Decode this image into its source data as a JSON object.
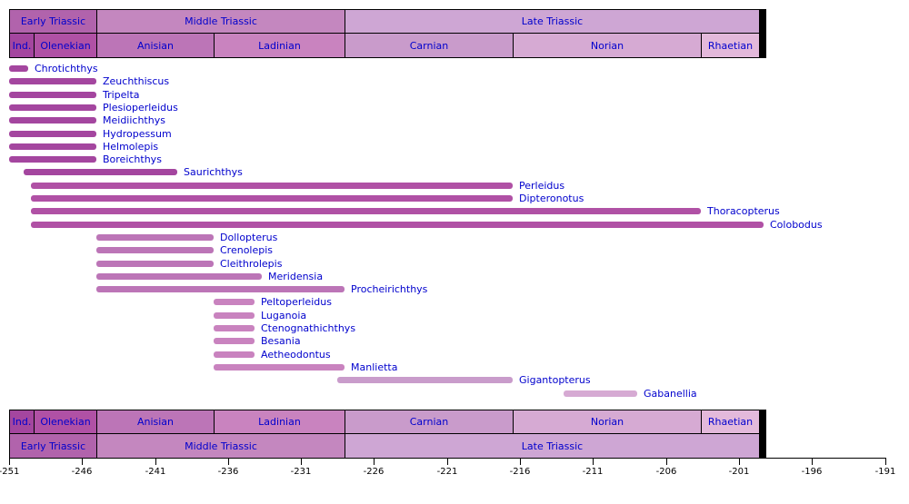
{
  "chart_data": {
    "type": "range-timeline",
    "title": "",
    "time_unit": "Ma",
    "label_color": "#0000CD",
    "tick_color": "#000000",
    "axis": {
      "min": -251,
      "max": -191,
      "tick_labels": [
        "-251",
        "-246",
        "-241",
        "-236",
        "-231",
        "-226",
        "-221",
        "-216",
        "-211",
        "-206",
        "-201",
        "-196",
        "-191"
      ]
    },
    "epoch_rows": [
      {
        "label": "Early Triassic",
        "start": 251,
        "end": 245,
        "color": "#B163AC"
      },
      {
        "label": "Middle Triassic",
        "start": 245,
        "end": 228,
        "color": "#C487BF"
      },
      {
        "label": "Late Triassic",
        "start": 228,
        "end": 199.6,
        "color": "#CEA6D4"
      }
    ],
    "stage_rows": [
      {
        "label": "Ind.",
        "start": 251,
        "end": 249.3,
        "color": "#A4469F"
      },
      {
        "label": "Olenekian",
        "start": 249.3,
        "end": 245,
        "color": "#B051A5"
      },
      {
        "label": "Anisian",
        "start": 245,
        "end": 237,
        "color": "#BC75B7"
      },
      {
        "label": "Ladinian",
        "start": 237,
        "end": 228,
        "color": "#C983BF"
      },
      {
        "label": "Carnian",
        "start": 228,
        "end": 216.5,
        "color": "#C99BCB"
      },
      {
        "label": "Norian",
        "start": 216.5,
        "end": 203.6,
        "color": "#D6AAD3"
      },
      {
        "label": "Rhaetian",
        "start": 203.6,
        "end": 199.6,
        "color": "#E3B9DB"
      }
    ],
    "taxa": [
      {
        "name": "Chrotichthys",
        "start": 251,
        "end": 249.7,
        "color": "#A4469F"
      },
      {
        "name": "Zeuchthiscus",
        "start": 251,
        "end": 245,
        "color": "#A4469F"
      },
      {
        "name": "Tripelta",
        "start": 251,
        "end": 245,
        "color": "#A4469F"
      },
      {
        "name": "Plesioperleidus",
        "start": 251,
        "end": 245,
        "color": "#A4469F"
      },
      {
        "name": "Meidiichthys",
        "start": 251,
        "end": 245,
        "color": "#A4469F"
      },
      {
        "name": "Hydropessum",
        "start": 251,
        "end": 245,
        "color": "#A4469F"
      },
      {
        "name": "Helmolepis",
        "start": 251,
        "end": 245,
        "color": "#A4469F"
      },
      {
        "name": "Boreichthys",
        "start": 251,
        "end": 245,
        "color": "#A4469F"
      },
      {
        "name": "Saurichthys",
        "start": 250,
        "end": 239.5,
        "color": "#A4469F"
      },
      {
        "name": "Perleidus",
        "start": 249.5,
        "end": 216.5,
        "color": "#B051A5"
      },
      {
        "name": "Dipteronotus",
        "start": 249.5,
        "end": 216.5,
        "color": "#B051A5"
      },
      {
        "name": "Thoracopterus",
        "start": 249.5,
        "end": 203.6,
        "color": "#B051A5"
      },
      {
        "name": "Colobodus",
        "start": 249.5,
        "end": 199.3,
        "color": "#B051A5"
      },
      {
        "name": "Dollopterus",
        "start": 245,
        "end": 237,
        "color": "#BC75B7"
      },
      {
        "name": "Crenolepis",
        "start": 245,
        "end": 237,
        "color": "#BC75B7"
      },
      {
        "name": "Cleithrolepis",
        "start": 245,
        "end": 237,
        "color": "#BC75B7"
      },
      {
        "name": "Meridensia",
        "start": 245,
        "end": 233.7,
        "color": "#BC75B7"
      },
      {
        "name": "Procheirichthys",
        "start": 245,
        "end": 228,
        "color": "#BC75B7"
      },
      {
        "name": "Peltoperleidus",
        "start": 237,
        "end": 234.2,
        "color": "#C983BF"
      },
      {
        "name": "Luganoia",
        "start": 237,
        "end": 234.2,
        "color": "#C983BF"
      },
      {
        "name": "Ctenognathichthys",
        "start": 237,
        "end": 234.2,
        "color": "#C983BF"
      },
      {
        "name": "Besania",
        "start": 237,
        "end": 234.2,
        "color": "#C983BF"
      },
      {
        "name": "Aetheodontus",
        "start": 237,
        "end": 234.2,
        "color": "#C983BF"
      },
      {
        "name": "Manlietta",
        "start": 237,
        "end": 228,
        "color": "#C983BF"
      },
      {
        "name": "Gigantopterus",
        "start": 228.5,
        "end": 216.5,
        "color": "#C99CCB"
      },
      {
        "name": "Gabanellia",
        "start": 213,
        "end": 208,
        "color": "#D6AAD3"
      }
    ]
  }
}
